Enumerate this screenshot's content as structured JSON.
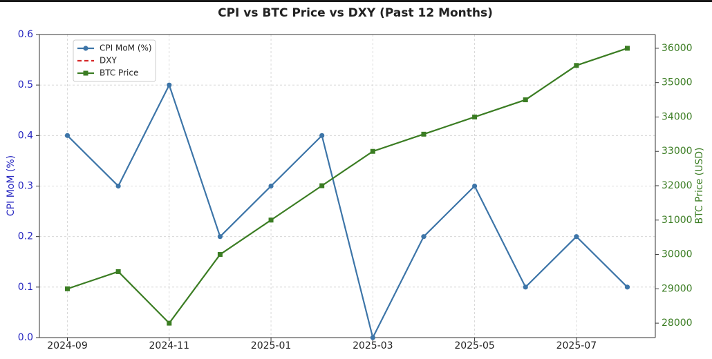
{
  "chart_data": {
    "type": "line",
    "title": "CPI vs BTC Price vs DXY (Past 12 Months)",
    "x": [
      "2024-09",
      "2024-10",
      "2024-11",
      "2024-12",
      "2025-01",
      "2025-02",
      "2025-03",
      "2025-04",
      "2025-05",
      "2025-06",
      "2025-07",
      "2025-08"
    ],
    "xticks": [
      "2024-09",
      "2024-11",
      "2025-01",
      "2025-03",
      "2025-05",
      "2025-07"
    ],
    "y_label": "CPI MoM (%)",
    "y2_label": "BTC Price (USD)",
    "ylim": [
      0,
      0.6
    ],
    "yticks": [
      {
        "value": 0,
        "label": "0.0"
      },
      0.1,
      0.2,
      0.3,
      0.4,
      0.5,
      0.6
    ],
    "y2lim": [
      27580,
      36400
    ],
    "y2ticks": [
      28000,
      29000,
      30000,
      31000,
      32000,
      33000,
      34000,
      35000,
      36000
    ],
    "grid": true,
    "legend": "upper left",
    "series": [
      {
        "name": "CPI MoM (%)",
        "color": "#3d75a8",
        "marker": "circle",
        "values": [
          0.4,
          0.3,
          0.5,
          0.2,
          0.3,
          0.4,
          0.0,
          0.2,
          0.3,
          0.1,
          0.2,
          0.1
        ]
      },
      {
        "name": "DXY",
        "color": "#d62728",
        "dash": true,
        "values": [
          null,
          null,
          null,
          null,
          null,
          null,
          null,
          null,
          null,
          null,
          null,
          null
        ]
      },
      {
        "name": "BTC Price",
        "color": "#3b7d23",
        "marker": "square",
        "axis": "y2",
        "values": [
          29000,
          29500,
          28000,
          30000,
          31000,
          32000,
          33000,
          33500,
          34000,
          34500,
          35500,
          36000
        ]
      }
    ]
  }
}
